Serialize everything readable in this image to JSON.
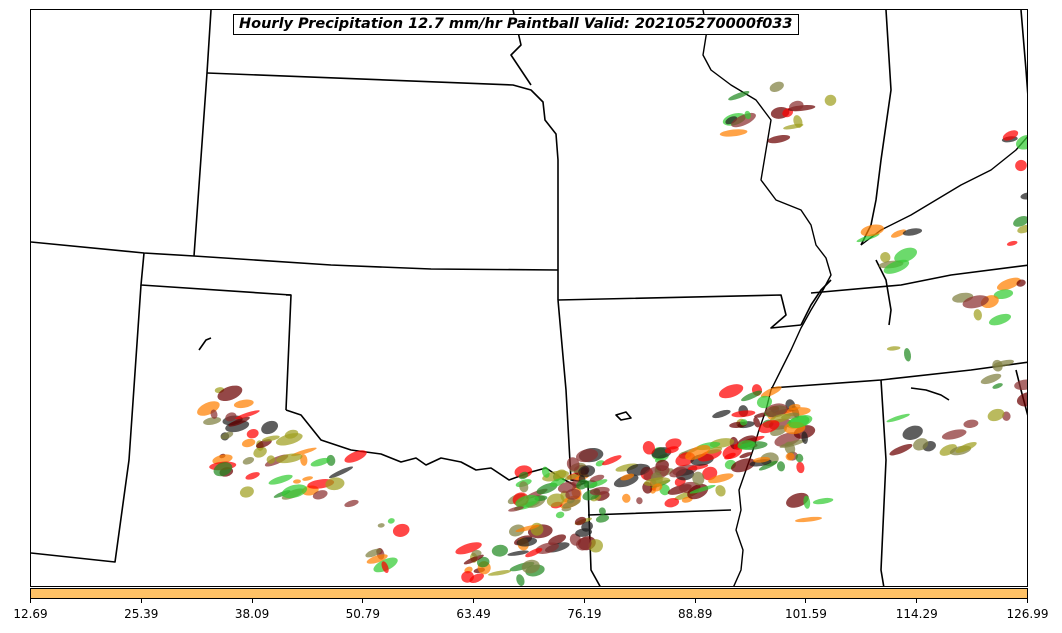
{
  "title": "Hourly Precipitation 12.7 mm/hr Paintball Valid: 202105270000f033",
  "colorbar": {
    "color": "#ffc266",
    "ticks": [
      "12.69",
      "25.39",
      "38.09",
      "50.79",
      "63.49",
      "76.19",
      "88.89",
      "101.59",
      "114.29",
      "126.99"
    ]
  },
  "member_colors": [
    "#8b2f2f",
    "#ff0000",
    "#ff7f00",
    "#a0a020",
    "#33cc33",
    "#228b22",
    "#202020",
    "#6b0000",
    "#808040"
  ]
}
